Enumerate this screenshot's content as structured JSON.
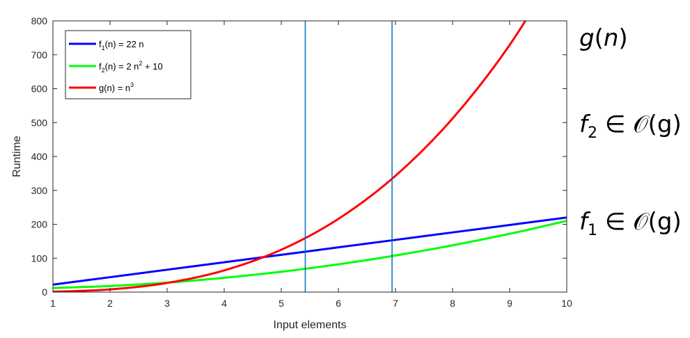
{
  "chart_data": {
    "type": "line",
    "xlabel": "Input elements",
    "ylabel": "Runtime",
    "xlim": [
      1,
      10
    ],
    "ylim": [
      0,
      800
    ],
    "xticks": [
      1,
      2,
      3,
      4,
      5,
      6,
      7,
      8,
      9,
      10
    ],
    "yticks": [
      0,
      100,
      200,
      300,
      400,
      500,
      600,
      700,
      800
    ],
    "grid": false,
    "legend_position": "top-left",
    "series": [
      {
        "name": "f1(n) = 22 n",
        "color": "#0000ff",
        "x": [
          1,
          2,
          3,
          4,
          5,
          6,
          7,
          8,
          9,
          10
        ],
        "y": [
          22,
          44,
          66,
          88,
          110,
          132,
          154,
          176,
          198,
          220
        ]
      },
      {
        "name": "f2(n) = 2 n2 + 10",
        "color": "#00ff00",
        "x": [
          1,
          2,
          3,
          4,
          5,
          6,
          7,
          8,
          9,
          10
        ],
        "y": [
          12,
          18,
          28,
          42,
          60,
          82,
          108,
          138,
          172,
          210
        ]
      },
      {
        "name": "g(n) = n3",
        "color": "#ff0000",
        "x": [
          1,
          2,
          3,
          4,
          5,
          6,
          7,
          8,
          9,
          10
        ],
        "y": [
          1,
          8,
          27,
          64,
          125,
          216,
          343,
          512,
          729,
          1000
        ]
      }
    ],
    "vertical_lines": {
      "color": "#0072bd",
      "x": [
        5.42,
        6.94
      ]
    },
    "annotations": [
      {
        "main": "g",
        "sub": "",
        "rest": "(n)"
      },
      {
        "main": "f",
        "sub": "2",
        "rest": " ∈ 𝒪(g)"
      },
      {
        "main": "f",
        "sub": "1",
        "rest": " ∈ 𝒪(g)"
      }
    ]
  }
}
